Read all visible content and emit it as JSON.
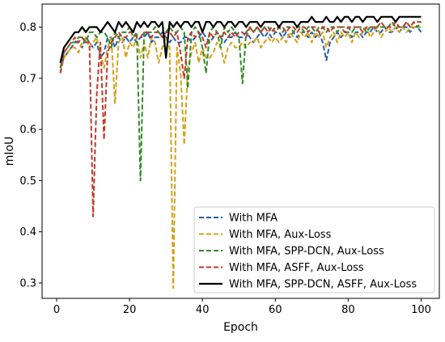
{
  "chart_data": {
    "type": "line",
    "title": "",
    "xlabel": "Epoch",
    "ylabel": "mIoU",
    "xlim": [
      -4,
      105
    ],
    "ylim": [
      0.27,
      0.845
    ],
    "xticks": [
      0,
      20,
      40,
      60,
      80,
      100
    ],
    "xtick_labels": [
      "0",
      "20",
      "40",
      "60",
      "80",
      "100"
    ],
    "yticks": [
      0.3,
      0.4,
      0.5,
      0.6,
      0.7,
      0.8
    ],
    "ytick_labels": [
      "0.3",
      "0.4",
      "0.5",
      "0.6",
      "0.7",
      "0.8"
    ],
    "grid": false,
    "legend_position": "lower-right",
    "x": [
      1,
      2,
      3,
      4,
      5,
      6,
      7,
      8,
      9,
      10,
      11,
      12,
      13,
      14,
      15,
      16,
      17,
      18,
      19,
      20,
      21,
      22,
      23,
      24,
      25,
      26,
      27,
      28,
      29,
      30,
      31,
      32,
      33,
      34,
      35,
      36,
      37,
      38,
      39,
      40,
      41,
      42,
      43,
      44,
      45,
      46,
      47,
      48,
      49,
      50,
      51,
      52,
      53,
      54,
      55,
      56,
      57,
      58,
      59,
      60,
      61,
      62,
      63,
      64,
      65,
      66,
      67,
      68,
      69,
      70,
      71,
      72,
      73,
      74,
      75,
      76,
      77,
      78,
      79,
      80,
      81,
      82,
      83,
      84,
      85,
      86,
      87,
      88,
      89,
      90,
      91,
      92,
      93,
      94,
      95,
      96,
      97,
      98,
      99,
      100
    ],
    "series": [
      {
        "name": "With MFA",
        "color": "#1f5fb0",
        "dash": "dashed",
        "values": [
          0.72,
          0.74,
          0.75,
          0.76,
          0.77,
          0.77,
          0.76,
          0.78,
          0.77,
          0.76,
          0.77,
          0.74,
          0.75,
          0.78,
          0.78,
          0.76,
          0.78,
          0.77,
          0.78,
          0.77,
          0.78,
          0.77,
          0.78,
          0.78,
          0.79,
          0.77,
          0.78,
          0.78,
          0.79,
          0.78,
          0.77,
          0.78,
          0.77,
          0.77,
          0.78,
          0.78,
          0.77,
          0.78,
          0.78,
          0.79,
          0.78,
          0.77,
          0.78,
          0.79,
          0.78,
          0.77,
          0.78,
          0.78,
          0.79,
          0.78,
          0.78,
          0.79,
          0.78,
          0.77,
          0.78,
          0.79,
          0.78,
          0.79,
          0.78,
          0.79,
          0.79,
          0.78,
          0.79,
          0.78,
          0.79,
          0.78,
          0.79,
          0.79,
          0.78,
          0.79,
          0.78,
          0.79,
          0.77,
          0.735,
          0.77,
          0.78,
          0.79,
          0.78,
          0.79,
          0.79,
          0.78,
          0.79,
          0.79,
          0.78,
          0.79,
          0.79,
          0.8,
          0.79,
          0.79,
          0.8,
          0.79,
          0.79,
          0.8,
          0.79,
          0.8,
          0.8,
          0.79,
          0.8,
          0.8,
          0.79
        ]
      },
      {
        "name": "With MFA, Aux-Loss",
        "color": "#d4a017",
        "dash": "dashed",
        "values": [
          0.71,
          0.74,
          0.75,
          0.76,
          0.76,
          0.75,
          0.77,
          0.78,
          0.76,
          0.77,
          0.78,
          0.75,
          0.72,
          0.76,
          0.78,
          0.65,
          0.77,
          0.78,
          0.74,
          0.77,
          0.76,
          0.78,
          0.74,
          0.77,
          0.74,
          0.78,
          0.77,
          0.73,
          0.76,
          0.78,
          0.76,
          0.29,
          0.76,
          0.71,
          0.57,
          0.72,
          0.75,
          0.77,
          0.73,
          0.76,
          0.74,
          0.74,
          0.75,
          0.77,
          0.76,
          0.73,
          0.76,
          0.77,
          0.76,
          0.76,
          0.77,
          0.76,
          0.77,
          0.77,
          0.78,
          0.76,
          0.77,
          0.78,
          0.77,
          0.78,
          0.77,
          0.78,
          0.77,
          0.79,
          0.78,
          0.77,
          0.79,
          0.78,
          0.79,
          0.77,
          0.79,
          0.78,
          0.79,
          0.76,
          0.78,
          0.79,
          0.77,
          0.79,
          0.78,
          0.79,
          0.77,
          0.79,
          0.78,
          0.79,
          0.8,
          0.78,
          0.79,
          0.8,
          0.78,
          0.79,
          0.8,
          0.79,
          0.8,
          0.79,
          0.8,
          0.79,
          0.8,
          0.8,
          0.8,
          0.8
        ]
      },
      {
        "name": "With MFA, SPP-DCN, Aux-Loss",
        "color": "#2e8b22",
        "dash": "dashed",
        "values": [
          0.72,
          0.75,
          0.76,
          0.77,
          0.77,
          0.78,
          0.78,
          0.77,
          0.79,
          0.79,
          0.78,
          0.79,
          0.79,
          0.78,
          0.76,
          0.79,
          0.78,
          0.79,
          0.79,
          0.8,
          0.78,
          0.79,
          0.5,
          0.79,
          0.79,
          0.79,
          0.8,
          0.79,
          0.78,
          0.79,
          0.8,
          0.79,
          0.79,
          0.8,
          0.79,
          0.68,
          0.79,
          0.8,
          0.79,
          0.76,
          0.71,
          0.79,
          0.8,
          0.79,
          0.76,
          0.8,
          0.79,
          0.8,
          0.79,
          0.78,
          0.69,
          0.79,
          0.8,
          0.79,
          0.8,
          0.79,
          0.8,
          0.8,
          0.79,
          0.8,
          0.8,
          0.79,
          0.8,
          0.8,
          0.79,
          0.8,
          0.8,
          0.79,
          0.8,
          0.8,
          0.79,
          0.8,
          0.8,
          0.79,
          0.8,
          0.8,
          0.79,
          0.8,
          0.8,
          0.8,
          0.79,
          0.8,
          0.8,
          0.8,
          0.79,
          0.8,
          0.8,
          0.8,
          0.8,
          0.8,
          0.8,
          0.81,
          0.8,
          0.8,
          0.8,
          0.81,
          0.8,
          0.81,
          0.8,
          0.81
        ]
      },
      {
        "name": "With MFA, ASFF, Aux-Loss",
        "color": "#c0392b",
        "dash": "dashed",
        "values": [
          0.71,
          0.75,
          0.76,
          0.77,
          0.78,
          0.77,
          0.78,
          0.77,
          0.77,
          0.43,
          0.67,
          0.77,
          0.58,
          0.75,
          0.77,
          0.78,
          0.79,
          0.78,
          0.78,
          0.79,
          0.79,
          0.78,
          0.78,
          0.79,
          0.79,
          0.78,
          0.79,
          0.79,
          0.78,
          0.79,
          0.79,
          0.78,
          0.79,
          0.75,
          0.7,
          0.78,
          0.79,
          0.78,
          0.79,
          0.78,
          0.76,
          0.79,
          0.78,
          0.79,
          0.78,
          0.79,
          0.78,
          0.79,
          0.78,
          0.79,
          0.79,
          0.78,
          0.8,
          0.79,
          0.8,
          0.79,
          0.8,
          0.79,
          0.8,
          0.79,
          0.8,
          0.8,
          0.79,
          0.8,
          0.8,
          0.79,
          0.8,
          0.8,
          0.79,
          0.8,
          0.8,
          0.79,
          0.8,
          0.8,
          0.79,
          0.8,
          0.8,
          0.8,
          0.79,
          0.8,
          0.8,
          0.8,
          0.8,
          0.79,
          0.8,
          0.8,
          0.8,
          0.8,
          0.81,
          0.8,
          0.8,
          0.8,
          0.81,
          0.8,
          0.8,
          0.81,
          0.8,
          0.81,
          0.81,
          0.81
        ]
      },
      {
        "name": "With MFA, SPP-DCN, ASFF, Aux-Loss",
        "color": "#000000",
        "dash": "solid",
        "values": [
          0.73,
          0.76,
          0.77,
          0.78,
          0.79,
          0.79,
          0.8,
          0.79,
          0.8,
          0.8,
          0.8,
          0.79,
          0.8,
          0.81,
          0.8,
          0.79,
          0.81,
          0.8,
          0.81,
          0.8,
          0.79,
          0.81,
          0.8,
          0.81,
          0.8,
          0.81,
          0.81,
          0.8,
          0.81,
          0.74,
          0.81,
          0.8,
          0.81,
          0.8,
          0.81,
          0.81,
          0.8,
          0.81,
          0.81,
          0.79,
          0.81,
          0.81,
          0.8,
          0.81,
          0.81,
          0.8,
          0.81,
          0.81,
          0.8,
          0.81,
          0.81,
          0.8,
          0.81,
          0.81,
          0.81,
          0.8,
          0.81,
          0.81,
          0.81,
          0.81,
          0.8,
          0.81,
          0.81,
          0.81,
          0.81,
          0.8,
          0.81,
          0.81,
          0.81,
          0.82,
          0.81,
          0.81,
          0.81,
          0.82,
          0.81,
          0.81,
          0.82,
          0.81,
          0.82,
          0.82,
          0.81,
          0.82,
          0.82,
          0.81,
          0.82,
          0.82,
          0.82,
          0.81,
          0.82,
          0.82,
          0.82,
          0.82,
          0.81,
          0.82,
          0.82,
          0.82,
          0.82,
          0.82,
          0.82,
          0.82
        ]
      }
    ]
  }
}
